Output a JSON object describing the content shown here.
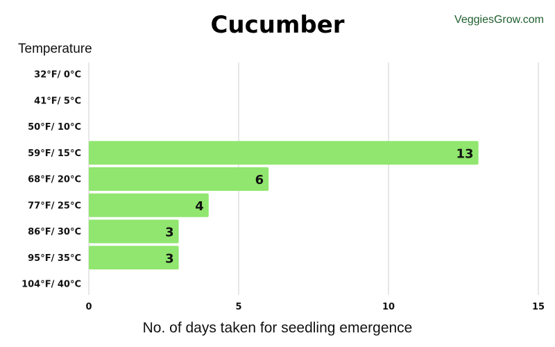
{
  "brand": "VeggiesGrow.com",
  "chart_data": {
    "type": "bar",
    "orientation": "horizontal",
    "title": "Cucumber",
    "ylabel": "Temperature",
    "xlabel": "No. of days taken for seedling emergence",
    "categories": [
      "32°F/ 0°C",
      "41°F/ 5°C",
      "50°F/ 10°C",
      "59°F/ 15°C",
      "68°F/ 20°C",
      "77°F/ 25°C",
      "86°F/ 30°C",
      "95°F/ 35°C",
      "104°F/ 40°C"
    ],
    "values": [
      null,
      null,
      null,
      13,
      6,
      4,
      3,
      3,
      null
    ],
    "xlim": [
      0,
      15
    ],
    "xticks": [
      0,
      5,
      10,
      15
    ],
    "grid": "vertical",
    "bar_color": "#90e66e"
  }
}
